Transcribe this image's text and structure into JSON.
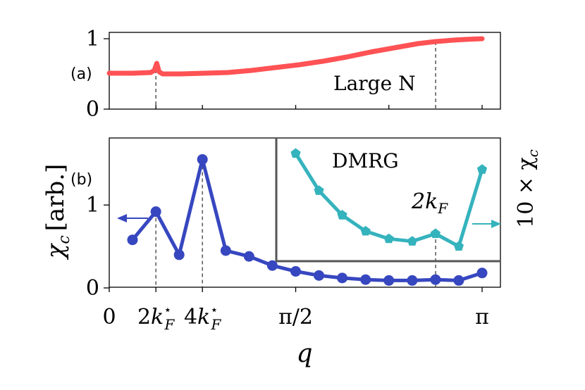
{
  "chart_data": [
    {
      "panel": "(a)",
      "type": "line",
      "annotation": "Large N",
      "color": "#ff5254",
      "x_range": [
        0,
        3.1416
      ],
      "ylim": [
        0,
        1.05
      ],
      "ytick_labels": [
        "0",
        "1"
      ],
      "ytick_values": [
        0,
        1
      ],
      "series": [
        {
          "x": [
            0,
            0.2,
            0.35,
            0.38,
            0.4,
            0.42,
            0.45,
            0.6,
            0.8,
            1.0,
            1.2,
            1.4,
            1.6,
            1.8,
            2.0,
            2.2,
            2.4,
            2.6,
            2.75,
            2.9,
            3.0,
            3.1416
          ],
          "y": [
            0.51,
            0.51,
            0.52,
            0.55,
            0.65,
            0.53,
            0.5,
            0.5,
            0.51,
            0.52,
            0.55,
            0.59,
            0.63,
            0.68,
            0.74,
            0.81,
            0.87,
            0.93,
            0.96,
            0.98,
            0.99,
            1.0
          ]
        }
      ],
      "vlines_x": [
        0.393,
        2.75
      ]
    },
    {
      "panel": "(b)",
      "type": "line",
      "ylabel": "χ",
      "ylabel_sub": "c",
      "ylabel_units": "[arb.]",
      "xlabel": "q",
      "x_range": [
        0,
        3.1416
      ],
      "ylim": [
        0,
        1.8
      ],
      "ytick_labels": [
        "0",
        "1"
      ],
      "ytick_values": [
        0,
        1
      ],
      "xtick_labels": [
        {
          "value": 0,
          "base": "0",
          "sub": "",
          "sup": ""
        },
        {
          "value": 0.393,
          "base": "2k",
          "sub": "F",
          "sup": "⋆"
        },
        {
          "value": 0.785,
          "base": "4k",
          "sub": "F",
          "sup": "⋆"
        },
        {
          "value": 1.571,
          "base": "π/2",
          "sub": "",
          "sup": ""
        },
        {
          "value": 3.1416,
          "base": "π",
          "sub": "",
          "sup": ""
        }
      ],
      "main_series": {
        "color": "#3747c0",
        "x": [
          0.196,
          0.393,
          0.589,
          0.785,
          0.982,
          1.178,
          1.374,
          1.571,
          1.767,
          1.963,
          2.16,
          2.356,
          2.553,
          2.749,
          2.945,
          3.1416
        ],
        "y": [
          0.58,
          0.92,
          0.4,
          1.55,
          0.45,
          0.38,
          0.27,
          0.2,
          0.15,
          0.12,
          0.1,
          0.09,
          0.09,
          0.1,
          0.09,
          0.18
        ]
      },
      "vlines_x": [
        0.393,
        0.785,
        2.75
      ],
      "inset": {
        "label": "DMRG",
        "annotation_base": "2k",
        "annotation_sub": "F",
        "right_axis_label": "10 × χ",
        "right_axis_sub": "c",
        "color": "#35b3bd",
        "x": [
          1.571,
          1.767,
          1.963,
          2.16,
          2.356,
          2.553,
          2.749,
          2.945,
          3.1416
        ],
        "y": [
          1.35,
          0.91,
          0.62,
          0.43,
          0.34,
          0.31,
          0.4,
          0.25,
          1.16
        ],
        "ylim": [
          0,
          1.5
        ]
      }
    }
  ]
}
